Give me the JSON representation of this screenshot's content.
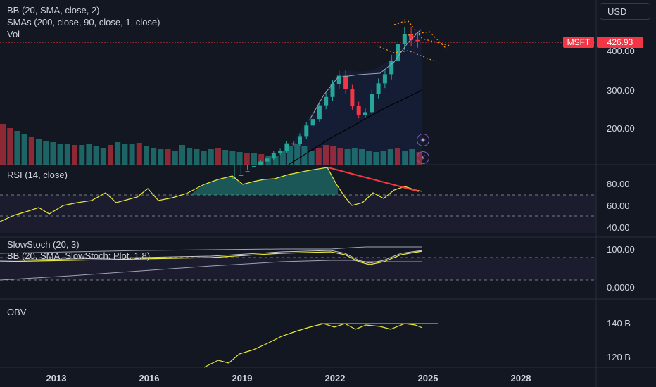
{
  "legend": {
    "bb": "BB (20, SMA, close, 2)",
    "smas": "SMAs (200, close, 90, close, 1, close)",
    "vol": "Vol"
  },
  "currency_button": "USD",
  "price_tag": {
    "symbol": "MSFT",
    "price": "426.93"
  },
  "price_axis": [
    "400.00",
    "300.00",
    "200.00"
  ],
  "rsi": {
    "title": "RSI (14, close)",
    "axis": [
      "80.00",
      "60.00",
      "40.00"
    ]
  },
  "stoch": {
    "title": "SlowStoch (20, 3)",
    "bb_title": "BB (20, SMA, SlowStoch: Plot, 1.8)",
    "axis": [
      "100.00",
      "0.0000"
    ]
  },
  "obv": {
    "title": "OBV",
    "axis": [
      "140 B",
      "120 B"
    ]
  },
  "time_axis": [
    "2013",
    "2016",
    "2019",
    "2022",
    "2025",
    "2028"
  ],
  "icons": {
    "star": "sparkle-icon",
    "flash": "flash-alert-icon"
  },
  "colors": {
    "up": "#26a69a",
    "down": "#f23645",
    "rsi": "#e8e83a",
    "background": "#131722"
  },
  "chart_data": {
    "type": "candlestick",
    "symbol": "MSFT",
    "interval": "quarterly",
    "last_price": 426.93,
    "candles_from": "2017",
    "ohlc_close": [
      68,
      75,
      85,
      98,
      110,
      118,
      133,
      138,
      158,
      157,
      177,
      205,
      222,
      258,
      280,
      313,
      336,
      300,
      257,
      233,
      240,
      288,
      316,
      340,
      376,
      420,
      446,
      430,
      426.93
    ],
    "rsi_range": [
      40,
      80
    ],
    "stoch_range": [
      0,
      100
    ],
    "obv_range_b": [
      120,
      140
    ]
  }
}
